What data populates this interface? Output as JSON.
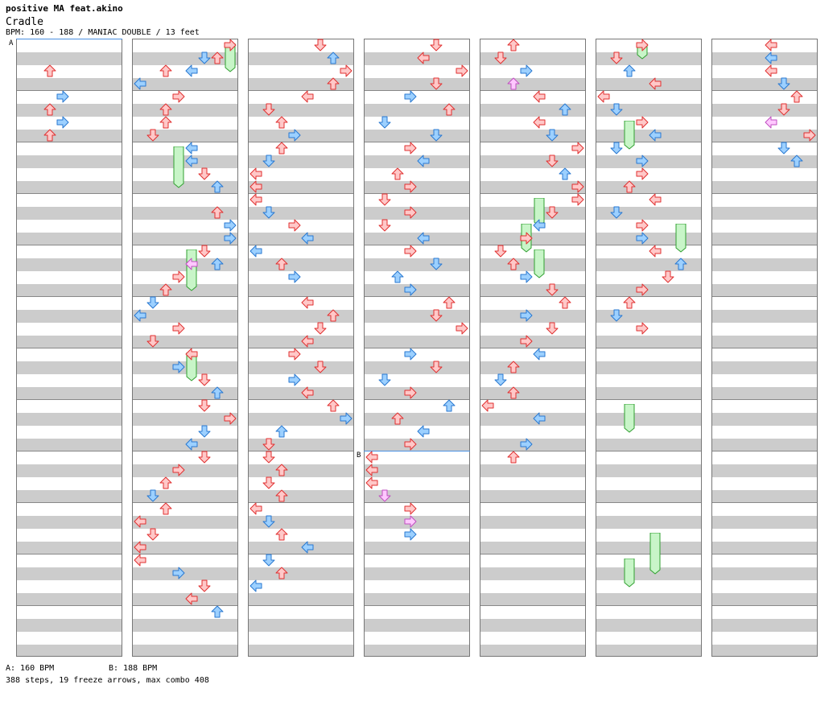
{
  "header": {
    "artist": "positive MA feat.akino",
    "title": "Cradle",
    "meta": "BPM: 160 - 188 / MANIAC DOUBLE / 13 feet"
  },
  "markers": {
    "a": "A",
    "b": "B"
  },
  "footer": {
    "bpm_a": "A: 160 BPM",
    "bpm_b": "B: 188 BPM",
    "stats": "388 steps, 19 freeze arrows, max combo 408"
  },
  "colors": {
    "red_fill": "#ffc8c8",
    "red_stroke": "#e03030",
    "blue_fill": "#9cd0ff",
    "blue_stroke": "#2a78d0",
    "pink_fill": "#ffc8ff",
    "pink_stroke": "#c050c0",
    "freeze_fill": "#c8f5c8",
    "freeze_stroke": "#30a030"
  },
  "notes": [
    [
      0,
      2,
      2,
      "r"
    ],
    [
      0,
      4,
      3,
      "b"
    ],
    [
      0,
      5,
      2,
      "r"
    ],
    [
      0,
      6,
      3,
      "b"
    ],
    [
      0,
      7,
      2,
      "r"
    ],
    [
      1,
      0,
      7,
      "r"
    ],
    [
      1,
      1,
      6,
      "r"
    ],
    [
      1,
      1,
      5,
      "b"
    ],
    [
      1,
      2,
      4,
      "b"
    ],
    [
      1,
      3,
      0,
      "b"
    ],
    [
      1,
      2,
      2,
      "r"
    ],
    [
      1,
      4,
      3,
      "r"
    ],
    [
      1,
      5,
      2,
      "r"
    ],
    [
      1,
      6,
      2,
      "r"
    ],
    [
      1,
      7,
      1,
      "r"
    ],
    [
      1,
      8,
      4,
      "b"
    ],
    [
      1,
      9,
      4,
      "b"
    ],
    [
      1,
      10,
      5,
      "r"
    ],
    [
      1,
      11,
      6,
      "b"
    ],
    [
      1,
      13,
      6,
      "r"
    ],
    [
      1,
      14,
      7,
      "b"
    ],
    [
      1,
      15,
      7,
      "b"
    ],
    [
      1,
      16,
      5,
      "r"
    ],
    [
      1,
      17,
      4,
      "p"
    ],
    [
      1,
      17,
      6,
      "b"
    ],
    [
      1,
      18,
      3,
      "r"
    ],
    [
      1,
      19,
      2,
      "r"
    ],
    [
      1,
      20,
      1,
      "b"
    ],
    [
      1,
      21,
      0,
      "b"
    ],
    [
      1,
      22,
      3,
      "r"
    ],
    [
      1,
      23,
      1,
      "r"
    ],
    [
      1,
      24,
      4,
      "r"
    ],
    [
      1,
      25,
      3,
      "b"
    ],
    [
      1,
      26,
      5,
      "r"
    ],
    [
      1,
      27,
      6,
      "b"
    ],
    [
      1,
      28,
      5,
      "r"
    ],
    [
      1,
      29,
      7,
      "r"
    ],
    [
      1,
      30,
      5,
      "b"
    ],
    [
      1,
      31,
      4,
      "b"
    ],
    [
      1,
      32,
      5,
      "r"
    ],
    [
      1,
      33,
      3,
      "r"
    ],
    [
      1,
      34,
      2,
      "r"
    ],
    [
      1,
      35,
      1,
      "b"
    ],
    [
      1,
      36,
      2,
      "r"
    ],
    [
      1,
      37,
      0,
      "r"
    ],
    [
      1,
      38,
      1,
      "r"
    ],
    [
      1,
      39,
      0,
      "r"
    ],
    [
      1,
      40,
      0,
      "r"
    ],
    [
      1,
      41,
      3,
      "b"
    ],
    [
      1,
      42,
      5,
      "r"
    ],
    [
      1,
      43,
      4,
      "r"
    ],
    [
      1,
      44,
      6,
      "b"
    ],
    [
      2,
      0,
      5,
      "r"
    ],
    [
      2,
      1,
      6,
      "b"
    ],
    [
      2,
      2,
      7,
      "r"
    ],
    [
      2,
      3,
      6,
      "r"
    ],
    [
      2,
      4,
      4,
      "r"
    ],
    [
      2,
      5,
      1,
      "r"
    ],
    [
      2,
      6,
      2,
      "r"
    ],
    [
      2,
      7,
      3,
      "b"
    ],
    [
      2,
      8,
      2,
      "r"
    ],
    [
      2,
      9,
      1,
      "b"
    ],
    [
      2,
      10,
      0,
      "r"
    ],
    [
      2,
      11,
      0,
      "r"
    ],
    [
      2,
      12,
      0,
      "r"
    ],
    [
      2,
      13,
      1,
      "b"
    ],
    [
      2,
      14,
      3,
      "r"
    ],
    [
      2,
      15,
      4,
      "b"
    ],
    [
      2,
      16,
      0,
      "b"
    ],
    [
      2,
      17,
      2,
      "r"
    ],
    [
      2,
      18,
      3,
      "b"
    ],
    [
      2,
      20,
      4,
      "r"
    ],
    [
      2,
      21,
      6,
      "r"
    ],
    [
      2,
      22,
      5,
      "r"
    ],
    [
      2,
      23,
      4,
      "r"
    ],
    [
      2,
      24,
      3,
      "r"
    ],
    [
      2,
      25,
      5,
      "r"
    ],
    [
      2,
      26,
      3,
      "b"
    ],
    [
      2,
      27,
      4,
      "r"
    ],
    [
      2,
      28,
      6,
      "r"
    ],
    [
      2,
      29,
      7,
      "b"
    ],
    [
      2,
      30,
      2,
      "b"
    ],
    [
      2,
      31,
      1,
      "r"
    ],
    [
      2,
      32,
      1,
      "r"
    ],
    [
      2,
      33,
      2,
      "r"
    ],
    [
      2,
      34,
      1,
      "r"
    ],
    [
      2,
      35,
      2,
      "r"
    ],
    [
      2,
      36,
      0,
      "r"
    ],
    [
      2,
      37,
      1,
      "b"
    ],
    [
      2,
      38,
      2,
      "r"
    ],
    [
      2,
      39,
      4,
      "b"
    ],
    [
      2,
      40,
      1,
      "b"
    ],
    [
      2,
      41,
      2,
      "r"
    ],
    [
      2,
      42,
      0,
      "b"
    ],
    [
      3,
      0,
      5,
      "r"
    ],
    [
      3,
      1,
      4,
      "r"
    ],
    [
      3,
      2,
      7,
      "r"
    ],
    [
      3,
      3,
      5,
      "r"
    ],
    [
      3,
      4,
      3,
      "b"
    ],
    [
      3,
      5,
      6,
      "r"
    ],
    [
      3,
      6,
      1,
      "b"
    ],
    [
      3,
      7,
      5,
      "b"
    ],
    [
      3,
      8,
      3,
      "r"
    ],
    [
      3,
      9,
      4,
      "b"
    ],
    [
      3,
      10,
      2,
      "r"
    ],
    [
      3,
      11,
      3,
      "r"
    ],
    [
      3,
      12,
      1,
      "r"
    ],
    [
      3,
      13,
      3,
      "r"
    ],
    [
      3,
      14,
      1,
      "r"
    ],
    [
      3,
      15,
      4,
      "b"
    ],
    [
      3,
      16,
      3,
      "r"
    ],
    [
      3,
      17,
      5,
      "b"
    ],
    [
      3,
      18,
      2,
      "b"
    ],
    [
      3,
      19,
      3,
      "b"
    ],
    [
      3,
      20,
      6,
      "r"
    ],
    [
      3,
      21,
      5,
      "r"
    ],
    [
      3,
      22,
      7,
      "r"
    ],
    [
      3,
      24,
      3,
      "b"
    ],
    [
      3,
      25,
      5,
      "r"
    ],
    [
      3,
      26,
      1,
      "b"
    ],
    [
      3,
      27,
      3,
      "r"
    ],
    [
      3,
      28,
      6,
      "b"
    ],
    [
      3,
      29,
      2,
      "r"
    ],
    [
      3,
      30,
      4,
      "b"
    ],
    [
      3,
      31,
      3,
      "r"
    ],
    [
      3,
      32,
      0,
      "r"
    ],
    [
      3,
      33,
      0,
      "r"
    ],
    [
      3,
      34,
      0,
      "r"
    ],
    [
      3,
      35,
      1,
      "p"
    ],
    [
      3,
      36,
      3,
      "r"
    ],
    [
      3,
      37,
      3,
      "p"
    ],
    [
      3,
      38,
      3,
      "b"
    ],
    [
      4,
      0,
      2,
      "r"
    ],
    [
      4,
      1,
      1,
      "r"
    ],
    [
      4,
      2,
      3,
      "b"
    ],
    [
      4,
      3,
      2,
      "p"
    ],
    [
      4,
      4,
      4,
      "r"
    ],
    [
      4,
      5,
      6,
      "b"
    ],
    [
      4,
      6,
      4,
      "r"
    ],
    [
      4,
      7,
      5,
      "b"
    ],
    [
      4,
      8,
      7,
      "r"
    ],
    [
      4,
      9,
      5,
      "r"
    ],
    [
      4,
      10,
      6,
      "b"
    ],
    [
      4,
      11,
      7,
      "r"
    ],
    [
      4,
      12,
      7,
      "r"
    ],
    [
      4,
      13,
      5,
      "r"
    ],
    [
      4,
      14,
      4,
      "b"
    ],
    [
      4,
      15,
      3,
      "r"
    ],
    [
      4,
      16,
      1,
      "r"
    ],
    [
      4,
      17,
      2,
      "r"
    ],
    [
      4,
      18,
      3,
      "b"
    ],
    [
      4,
      19,
      5,
      "r"
    ],
    [
      4,
      20,
      6,
      "r"
    ],
    [
      4,
      21,
      3,
      "b"
    ],
    [
      4,
      22,
      5,
      "r"
    ],
    [
      4,
      23,
      3,
      "r"
    ],
    [
      4,
      24,
      4,
      "b"
    ],
    [
      4,
      25,
      2,
      "r"
    ],
    [
      4,
      26,
      1,
      "b"
    ],
    [
      4,
      27,
      2,
      "r"
    ],
    [
      4,
      28,
      0,
      "r"
    ],
    [
      4,
      29,
      4,
      "b"
    ],
    [
      4,
      31,
      3,
      "b"
    ],
    [
      4,
      32,
      2,
      "r"
    ],
    [
      5,
      0,
      3,
      "r"
    ],
    [
      5,
      1,
      1,
      "r"
    ],
    [
      5,
      2,
      2,
      "b"
    ],
    [
      5,
      3,
      4,
      "r"
    ],
    [
      5,
      4,
      0,
      "r"
    ],
    [
      5,
      5,
      1,
      "b"
    ],
    [
      5,
      6,
      3,
      "r"
    ],
    [
      5,
      7,
      4,
      "b"
    ],
    [
      5,
      8,
      1,
      "b"
    ],
    [
      5,
      9,
      3,
      "b"
    ],
    [
      5,
      10,
      3,
      "r"
    ],
    [
      5,
      11,
      2,
      "r"
    ],
    [
      5,
      12,
      4,
      "r"
    ],
    [
      5,
      13,
      1,
      "b"
    ],
    [
      5,
      14,
      3,
      "r"
    ],
    [
      5,
      15,
      3,
      "b"
    ],
    [
      5,
      16,
      4,
      "r"
    ],
    [
      5,
      17,
      6,
      "b"
    ],
    [
      5,
      18,
      5,
      "r"
    ],
    [
      5,
      19,
      3,
      "r"
    ],
    [
      5,
      20,
      2,
      "r"
    ],
    [
      5,
      21,
      1,
      "b"
    ],
    [
      5,
      22,
      3,
      "r"
    ],
    [
      6,
      0,
      4,
      "r"
    ],
    [
      6,
      1,
      4,
      "b"
    ],
    [
      6,
      2,
      4,
      "r"
    ],
    [
      6,
      3,
      5,
      "b"
    ],
    [
      6,
      4,
      6,
      "r"
    ],
    [
      6,
      5,
      5,
      "r"
    ],
    [
      6,
      6,
      4,
      "p"
    ],
    [
      6,
      7,
      7,
      "r"
    ],
    [
      6,
      8,
      5,
      "b"
    ],
    [
      6,
      9,
      6,
      "b"
    ]
  ],
  "freezes": [
    [
      1,
      0,
      7,
      2
    ],
    [
      1,
      8,
      3,
      11
    ],
    [
      1,
      16,
      4,
      19
    ],
    [
      1,
      24,
      4,
      26
    ],
    [
      4,
      12,
      4,
      14
    ],
    [
      4,
      14,
      3,
      16
    ],
    [
      4,
      16,
      4,
      18
    ],
    [
      5,
      0,
      3,
      1
    ],
    [
      5,
      6,
      2,
      8
    ],
    [
      5,
      14,
      6,
      16
    ],
    [
      5,
      28,
      2,
      30
    ],
    [
      5,
      38,
      4,
      41
    ],
    [
      5,
      40,
      2,
      42
    ]
  ]
}
